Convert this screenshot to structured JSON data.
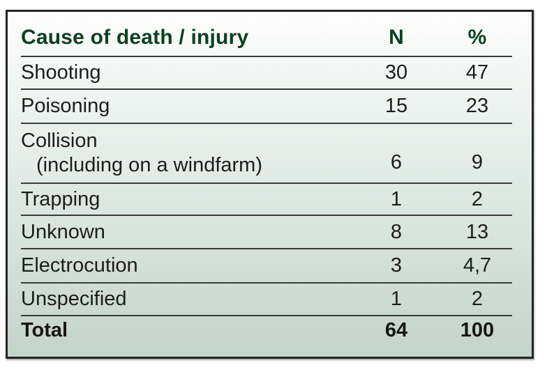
{
  "table": {
    "header": {
      "cause": "Cause of death / injury",
      "n": "N",
      "pct": "%"
    },
    "rows": [
      {
        "cause": "Shooting",
        "n": "30",
        "pct": "47"
      },
      {
        "cause": "Poisoning",
        "n": "15",
        "pct": "23"
      },
      {
        "cause": "Collision",
        "cause_line2": "(including on a windfarm)",
        "n": "6",
        "pct": "9"
      },
      {
        "cause": "Trapping",
        "n": "1",
        "pct": "2"
      },
      {
        "cause": "Unknown",
        "n": "8",
        "pct": "13"
      },
      {
        "cause": "Electrocution",
        "n": "3",
        "pct": "4,7"
      },
      {
        "cause": "Unspecified",
        "n": "1",
        "pct": "2"
      }
    ],
    "total": {
      "label": "Total",
      "n": "64",
      "pct": "100"
    }
  },
  "colors": {
    "header_text": "#0c4123",
    "body_text": "#1d1d1b",
    "border": "#242424",
    "rule": "#3a3a3a",
    "background_top": "#fdfdfc",
    "background_bottom": "#c3d4cb"
  },
  "chart_data": {
    "type": "table",
    "title": "Cause of death / injury",
    "columns": [
      "Cause of death / injury",
      "N",
      "%"
    ],
    "rows": [
      [
        "Shooting",
        30,
        47
      ],
      [
        "Poisoning",
        15,
        23
      ],
      [
        "Collision (including on a windfarm)",
        6,
        9
      ],
      [
        "Trapping",
        1,
        2
      ],
      [
        "Unknown",
        8,
        13
      ],
      [
        "Electrocution",
        3,
        "4,7"
      ],
      [
        "Unspecified",
        1,
        2
      ],
      [
        "Total",
        64,
        100
      ]
    ]
  }
}
